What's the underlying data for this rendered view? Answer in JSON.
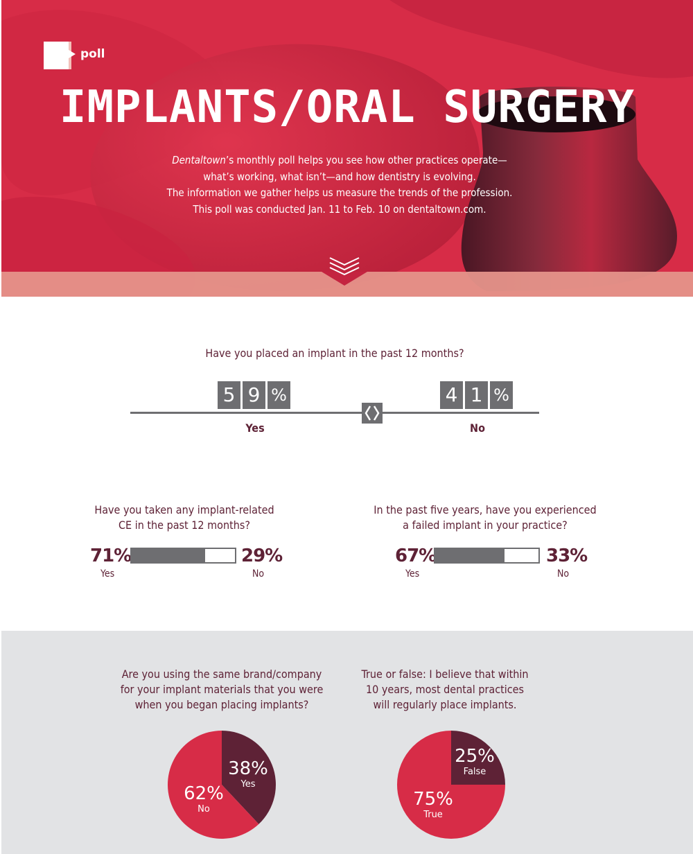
{
  "header": {
    "badge": "poll",
    "title": "IMPLANTS/ORAL SURGERY",
    "intro_brand": "Dentaltown",
    "intro_line1_rest": "’s monthly poll helps you see how other practices operate—",
    "intro_line2": "what’s working, what isn’t—and how dentistry is evolving.",
    "intro_line3": "The information we gather helps us measure the trends of the profession.",
    "intro_line4": "This poll was conducted Jan. 11 to Feb. 10 on dentaltown.com.",
    "colors": {
      "brand_red": "#d72c47",
      "dark_maroon": "#5e2236",
      "gray": "#6e6e71",
      "panel_gray": "#e2e3e5"
    }
  },
  "chart_data": [
    {
      "type": "bar",
      "question": "Have you placed an implant in the past 12 months?",
      "categories": [
        "Yes",
        "No"
      ],
      "values": [
        59,
        41
      ],
      "digits": {
        "yes": [
          "5",
          "9",
          "%"
        ],
        "no": [
          "4",
          "1",
          "%"
        ]
      }
    },
    {
      "type": "bar",
      "question_line1": "Have you taken any implant-related",
      "question_line2": "CE in the past 12 months?",
      "categories": [
        "Yes",
        "No"
      ],
      "values": [
        71,
        29
      ],
      "value_labels": [
        "71%",
        "29%"
      ]
    },
    {
      "type": "bar",
      "question_line1": "In the past five years, have you experienced",
      "question_line2": "a failed implant in your practice?",
      "categories": [
        "Yes",
        "No"
      ],
      "values": [
        67,
        33
      ],
      "value_labels": [
        "67%",
        "33%"
      ]
    },
    {
      "type": "pie",
      "question_line1": "Are you using the same brand/company",
      "question_line2": "for your implant materials that you were",
      "question_line3": "when you began placing implants?",
      "categories": [
        "Yes",
        "No"
      ],
      "values": [
        38,
        62
      ],
      "value_labels": [
        "38%",
        "62%"
      ],
      "colors": [
        "#5e2236",
        "#d72c47"
      ]
    },
    {
      "type": "pie",
      "question_line1": "True or false: I believe that within",
      "question_line2": "10 years, most dental practices",
      "question_line3": "will regularly place implants.",
      "categories": [
        "False",
        "True"
      ],
      "values": [
        25,
        75
      ],
      "value_labels": [
        "25%",
        "75%"
      ],
      "colors": [
        "#5e2236",
        "#d72c47"
      ]
    }
  ]
}
